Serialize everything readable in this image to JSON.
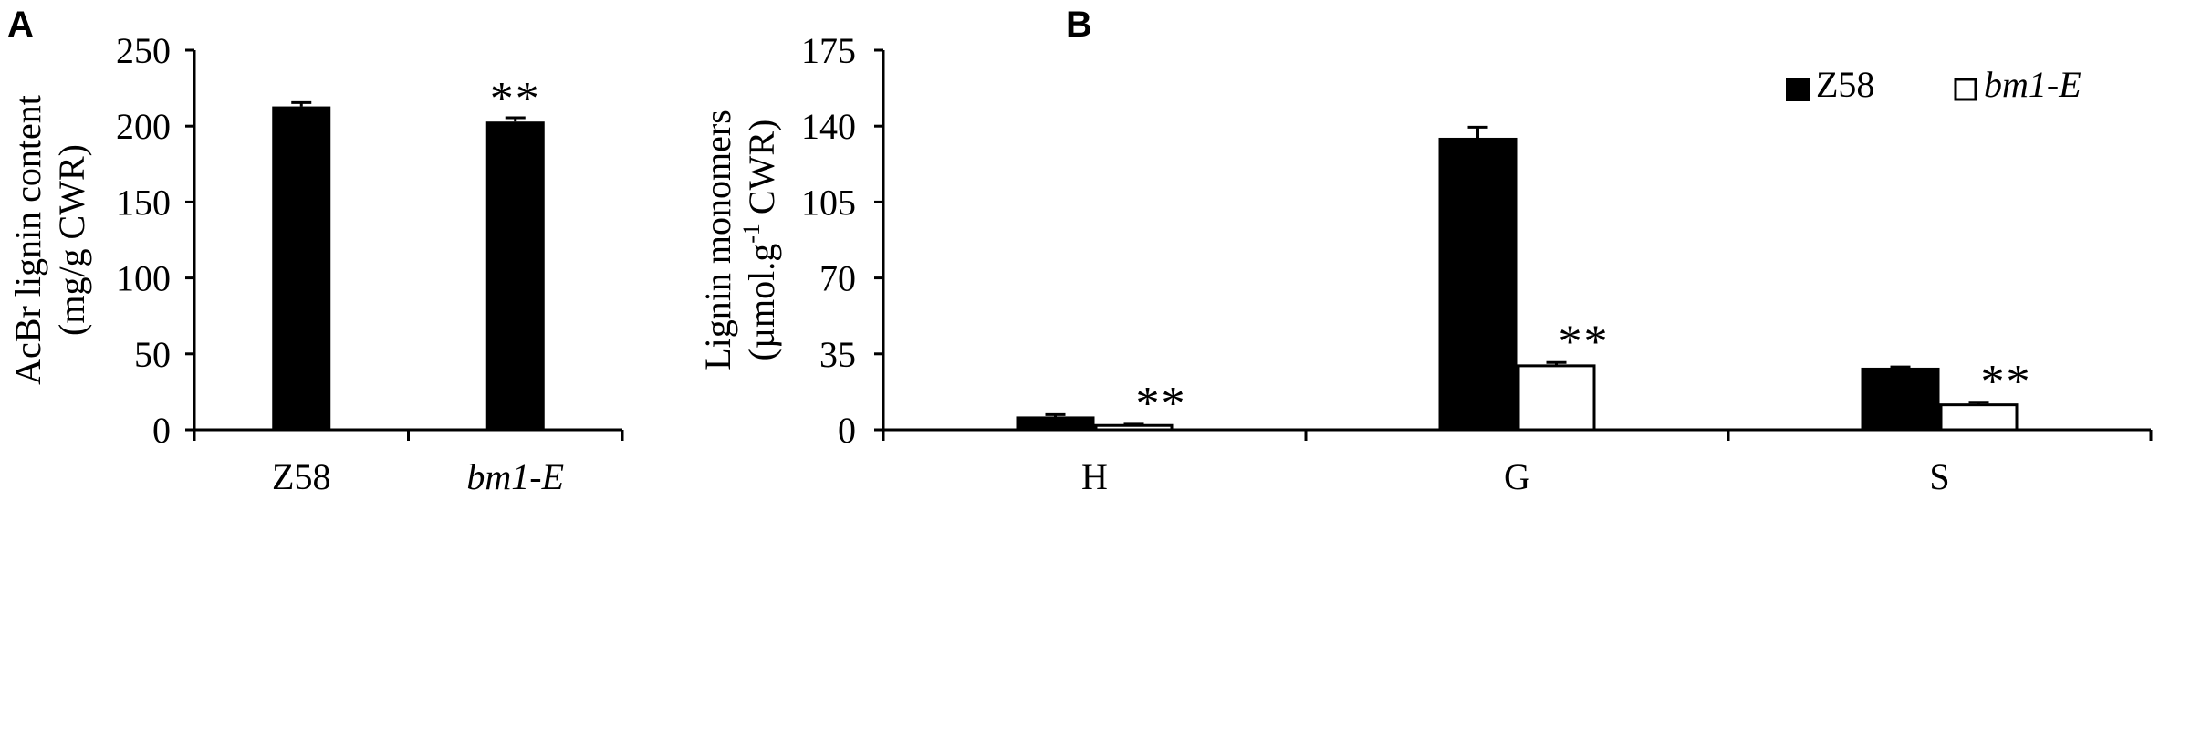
{
  "chart_data": [
    {
      "panel_label": "A",
      "type": "bar",
      "categories": [
        "Z58",
        "bm1-E"
      ],
      "categories_italic": [
        false,
        true
      ],
      "values": [
        213,
        203
      ],
      "errors": [
        2.5,
        2.5
      ],
      "significance": [
        "",
        "**"
      ],
      "ylabel_lines": [
        "AcBr lignin content",
        "(mg/g CWR)"
      ],
      "ylim": [
        0,
        250
      ],
      "yticks": [
        0,
        50,
        100,
        150,
        200,
        250
      ],
      "bar_color": "#000000",
      "grid": false
    },
    {
      "panel_label": "B",
      "type": "bar",
      "categories": [
        "H",
        "G",
        "S"
      ],
      "series": [
        {
          "name": "Z58",
          "values": [
            5.5,
            134,
            28
          ],
          "errors": [
            1.5,
            5.5,
            1.0
          ],
          "significance": [
            "",
            "",
            ""
          ],
          "fill": "#000000"
        },
        {
          "name": "bm1-E",
          "name_italic": true,
          "values": [
            2,
            29.5,
            11.5
          ],
          "errors": [
            0.6,
            1.5,
            1.2
          ],
          "significance": [
            "**",
            "**",
            "**"
          ],
          "fill": "#ffffff"
        }
      ],
      "ylabel_line1": "Lignin monomers",
      "ylabel_line2_prefix": "(µmol.g",
      "ylabel_line2_sup": "-1",
      "ylabel_line2_suffix": " CWR)",
      "ylim": [
        0,
        175
      ],
      "yticks": [
        0,
        35,
        70,
        105,
        140,
        175
      ],
      "legend_position": "top-right",
      "grid": false
    }
  ]
}
